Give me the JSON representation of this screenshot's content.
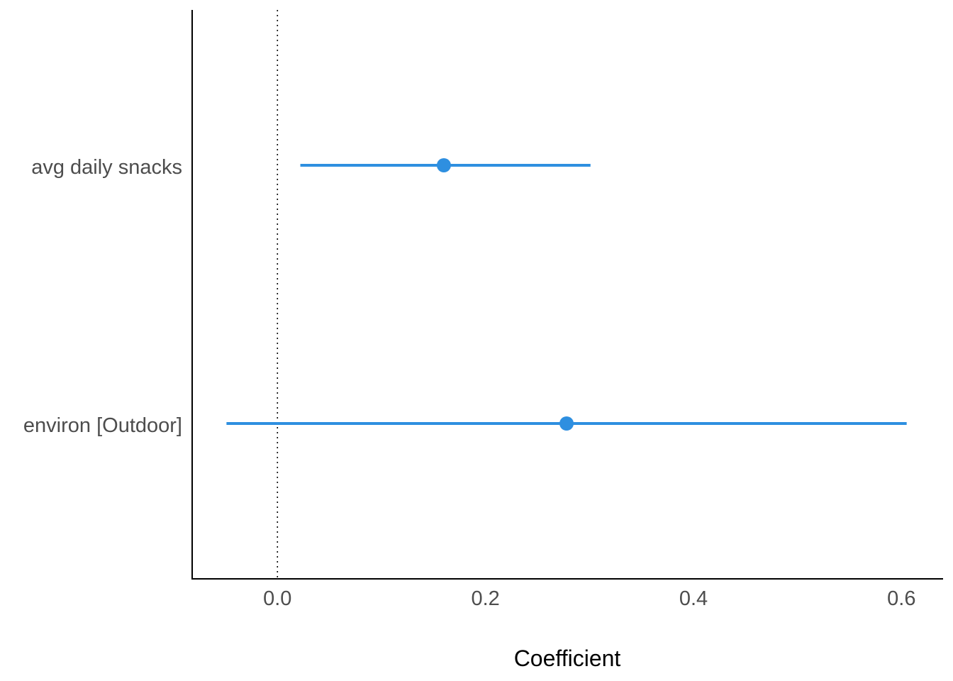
{
  "chart_data": {
    "type": "forest",
    "xlabel": "Coefficient",
    "ylabel": "",
    "xlim": [
      -0.082,
      0.64
    ],
    "x_ticks": [
      0.0,
      0.2,
      0.4,
      0.6
    ],
    "x_tick_labels": [
      "0.0",
      "0.2",
      "0.4",
      "0.6"
    ],
    "reference_line": 0,
    "color": "#2e8fe0",
    "terms": [
      {
        "label": "avg daily snacks",
        "estimate": 0.16,
        "ci_low": 0.022,
        "ci_high": 0.301
      },
      {
        "label": "environ [Outdoor]",
        "estimate": 0.278,
        "ci_low": -0.049,
        "ci_high": 0.605
      }
    ]
  }
}
